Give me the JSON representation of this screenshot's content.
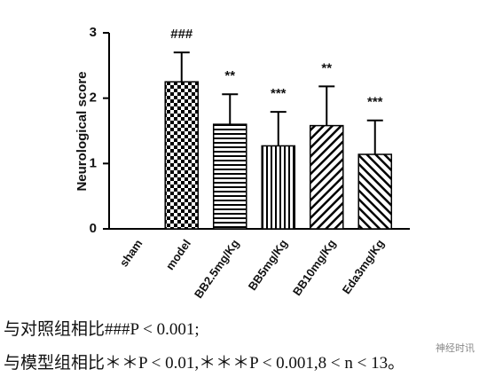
{
  "chart_data": {
    "type": "bar",
    "y_label": "Neurological score",
    "categories": [
      "sham",
      "model",
      "BB2.5mg/Kg",
      "BB5mg/Kg",
      "BB10mg/Kg",
      "Eda3mg/Kg"
    ],
    "values": [
      0,
      2.25,
      1.6,
      1.27,
      1.58,
      1.14
    ],
    "errors": [
      0,
      0.45,
      0.46,
      0.52,
      0.6,
      0.52
    ],
    "significance": [
      null,
      "###",
      "**",
      "***",
      "**",
      "***"
    ],
    "patterns": [
      "solid",
      "checker",
      "horizontal",
      "vertical",
      "diagonal-right",
      "diagonal-left"
    ],
    "color": "#000000",
    "ylim": [
      0,
      3
    ],
    "yticks": [
      0,
      1,
      2,
      3
    ],
    "grid": false
  },
  "caption": [
    "与对照组相比###P < 0.001;",
    "与模型组相比＊＊P < 0.01,＊＊＊P < 0.001,8 < n < 13。"
  ],
  "watermark": "神经时讯"
}
